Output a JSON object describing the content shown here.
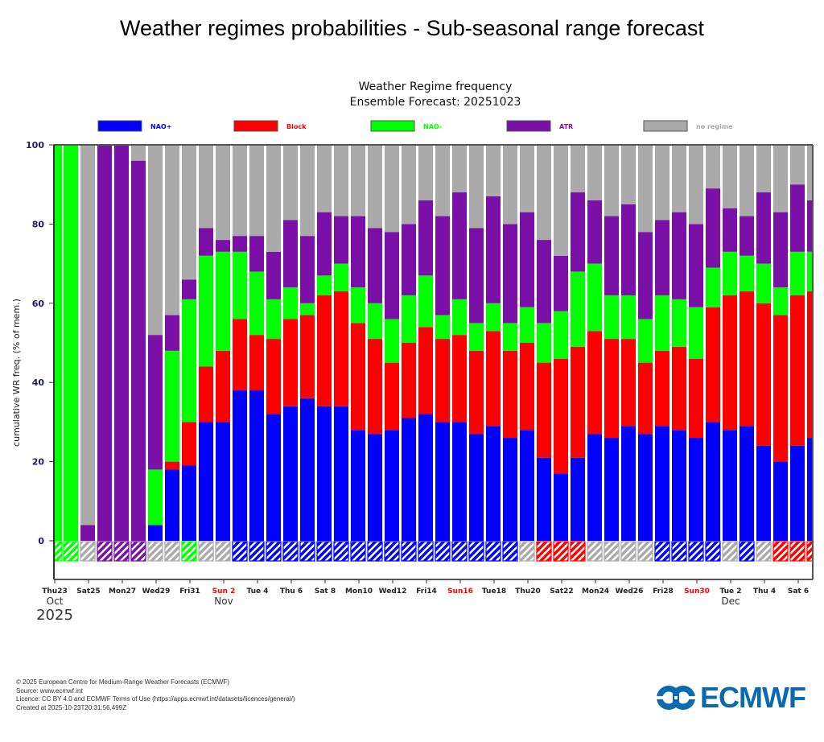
{
  "page": {
    "title": "Weather regimes probabilities - Sub-seasonal range forecast"
  },
  "footer": {
    "lines": [
      "© 2025 European Centre for Medium-Range Weather Forecasts (ECMWF)",
      "Source: www.ecmwf.int",
      "Licence: CC BY 4.0 and ECMWF Terms of Use (https://apps.ecmwf.int/datasets/licences/general/)",
      "Created at 2025-10-23T20:31:56.499Z"
    ]
  },
  "logo": {
    "text": "ECMWF",
    "icon": "ecmwf-logo-icon",
    "color": "#0a6ab0"
  },
  "chart_data": {
    "type": "bar",
    "stacked": true,
    "cumulative": true,
    "title": "Weather Regime frequency",
    "subtitle": "Ensemble Forecast: 20251023",
    "xlabel": "",
    "ylabel": "cumulative WR freq. (% of mem.)",
    "ylim": [
      -10,
      100
    ],
    "yticks": [
      0,
      20,
      40,
      60,
      80,
      100
    ],
    "grid": false,
    "legend_position": "top",
    "legend": [
      {
        "name": "NAO+",
        "color": "#0000ff",
        "label_color": "#0000ff"
      },
      {
        "name": "Block",
        "color": "#ff0000",
        "label_color": "#ff0000"
      },
      {
        "name": "NAO-",
        "color": "#00ff00",
        "label_color": "#00ff00"
      },
      {
        "name": "ATR",
        "color": "#7a10a8",
        "label_color": "#7a10a8"
      },
      {
        "name": "no regime",
        "color": "#aaaaaa",
        "label_color": "#aaaaaa"
      }
    ],
    "x_ticks": [
      {
        "label": "Thu23",
        "day": 0,
        "red": false
      },
      {
        "label": "Sat25",
        "day": 2,
        "red": false
      },
      {
        "label": "Mon27",
        "day": 4,
        "red": false
      },
      {
        "label": "Wed29",
        "day": 6,
        "red": false
      },
      {
        "label": "Fri31",
        "day": 8,
        "red": false
      },
      {
        "label": "Sun 2",
        "day": 10,
        "red": true
      },
      {
        "label": "Tue 4",
        "day": 12,
        "red": false
      },
      {
        "label": "Thu 6",
        "day": 14,
        "red": false
      },
      {
        "label": "Sat 8",
        "day": 16,
        "red": false
      },
      {
        "label": "Mon10",
        "day": 18,
        "red": false
      },
      {
        "label": "Wed12",
        "day": 20,
        "red": false
      },
      {
        "label": "Fri14",
        "day": 22,
        "red": false
      },
      {
        "label": "Sun16",
        "day": 24,
        "red": true
      },
      {
        "label": "Tue18",
        "day": 26,
        "red": false
      },
      {
        "label": "Thu20",
        "day": 28,
        "red": false
      },
      {
        "label": "Sat22",
        "day": 30,
        "red": false
      },
      {
        "label": "Mon24",
        "day": 32,
        "red": false
      },
      {
        "label": "Wed26",
        "day": 34,
        "red": false
      },
      {
        "label": "Fri28",
        "day": 36,
        "red": false
      },
      {
        "label": "Sun30",
        "day": 38,
        "red": true
      },
      {
        "label": "Tue 2",
        "day": 40,
        "red": false
      },
      {
        "label": "Thu 4",
        "day": 42,
        "red": false
      },
      {
        "label": "Sat 6",
        "day": 44,
        "red": false
      }
    ],
    "month_labels": [
      {
        "label": "Oct",
        "day": 0
      },
      {
        "label": "Nov",
        "day": 10
      },
      {
        "label": "Dec",
        "day": 40
      }
    ],
    "year_label": "2025",
    "categories": [
      "Oct23",
      "Oct24",
      "Oct25",
      "Oct26",
      "Oct27",
      "Oct28",
      "Oct29",
      "Oct30",
      "Oct31",
      "Nov1",
      "Nov2",
      "Nov3",
      "Nov4",
      "Nov5",
      "Nov6",
      "Nov7",
      "Nov8",
      "Nov9",
      "Nov10",
      "Nov11",
      "Nov12",
      "Nov13",
      "Nov14",
      "Nov15",
      "Nov16",
      "Nov17",
      "Nov18",
      "Nov19",
      "Nov20",
      "Nov21",
      "Nov22",
      "Nov23",
      "Nov24",
      "Nov25",
      "Nov26",
      "Nov27",
      "Nov28",
      "Nov29",
      "Nov30",
      "Dec1",
      "Dec2",
      "Dec3",
      "Dec4",
      "Dec5",
      "Dec6",
      "Dec7"
    ],
    "series": [
      {
        "name": "NAO+",
        "values": [
          0,
          0,
          0,
          0,
          0,
          0,
          4,
          18,
          19,
          30,
          30,
          38,
          38,
          32,
          34,
          36,
          34,
          34,
          28,
          27,
          28,
          31,
          32,
          30,
          30,
          27,
          29,
          26,
          28,
          21,
          17,
          21,
          27,
          26,
          29,
          27,
          29,
          28,
          26,
          30,
          28,
          29,
          24,
          20,
          24,
          26
        ]
      },
      {
        "name": "Block",
        "values": [
          0,
          0,
          0,
          0,
          0,
          0,
          0,
          2,
          11,
          14,
          18,
          18,
          14,
          19,
          22,
          21,
          28,
          29,
          27,
          24,
          17,
          19,
          22,
          21,
          22,
          21,
          24,
          22,
          22,
          24,
          29,
          28,
          26,
          25,
          22,
          18,
          19,
          21,
          20,
          29,
          34,
          34,
          36,
          37,
          38,
          37
        ]
      },
      {
        "name": "NAO-",
        "values": [
          100,
          100,
          0,
          0,
          0,
          0,
          14,
          28,
          31,
          28,
          25,
          17,
          16,
          10,
          8,
          3,
          5,
          7,
          9,
          9,
          11,
          12,
          13,
          6,
          9,
          7,
          7,
          7,
          9,
          10,
          12,
          19,
          17,
          11,
          11,
          11,
          14,
          12,
          13,
          10,
          11,
          9,
          10,
          7,
          11,
          10
        ]
      },
      {
        "name": "ATR",
        "values": [
          0,
          0,
          4,
          100,
          100,
          96,
          34,
          9,
          5,
          7,
          3,
          4,
          9,
          12,
          17,
          17,
          16,
          12,
          18,
          19,
          22,
          18,
          19,
          25,
          27,
          24,
          27,
          25,
          24,
          21,
          14,
          20,
          16,
          20,
          23,
          22,
          19,
          22,
          21,
          20,
          11,
          10,
          18,
          19,
          17,
          13
        ]
      },
      {
        "name": "no regime",
        "values": [
          0,
          0,
          96,
          0,
          0,
          4,
          48,
          43,
          34,
          21,
          24,
          23,
          23,
          27,
          19,
          23,
          17,
          18,
          18,
          21,
          22,
          20,
          14,
          18,
          12,
          21,
          13,
          20,
          17,
          24,
          28,
          12,
          14,
          18,
          15,
          22,
          19,
          17,
          20,
          11,
          16,
          18,
          12,
          17,
          10,
          14
        ]
      }
    ],
    "dominant_regime": [
      "NAO-",
      "NAO-",
      "no regime",
      "ATR",
      "ATR",
      "ATR",
      "no regime",
      "no regime",
      "NAO-",
      "no regime",
      "no regime",
      "NAO+",
      "NAO+",
      "NAO+",
      "NAO+",
      "NAO+",
      "NAO+",
      "NAO+",
      "NAO+",
      "NAO+",
      "NAO+",
      "NAO+",
      "NAO+",
      "NAO+",
      "NAO+",
      "NAO+",
      "NAO+",
      "NAO+",
      "no regime",
      "Block",
      "Block",
      "Block",
      "no regime",
      "no regime",
      "no regime",
      "no regime",
      "NAO+",
      "NAO+",
      "NAO+",
      "NAO+",
      "no regime",
      "NAO+",
      "no regime",
      "Block",
      "Block",
      "Block"
    ]
  }
}
